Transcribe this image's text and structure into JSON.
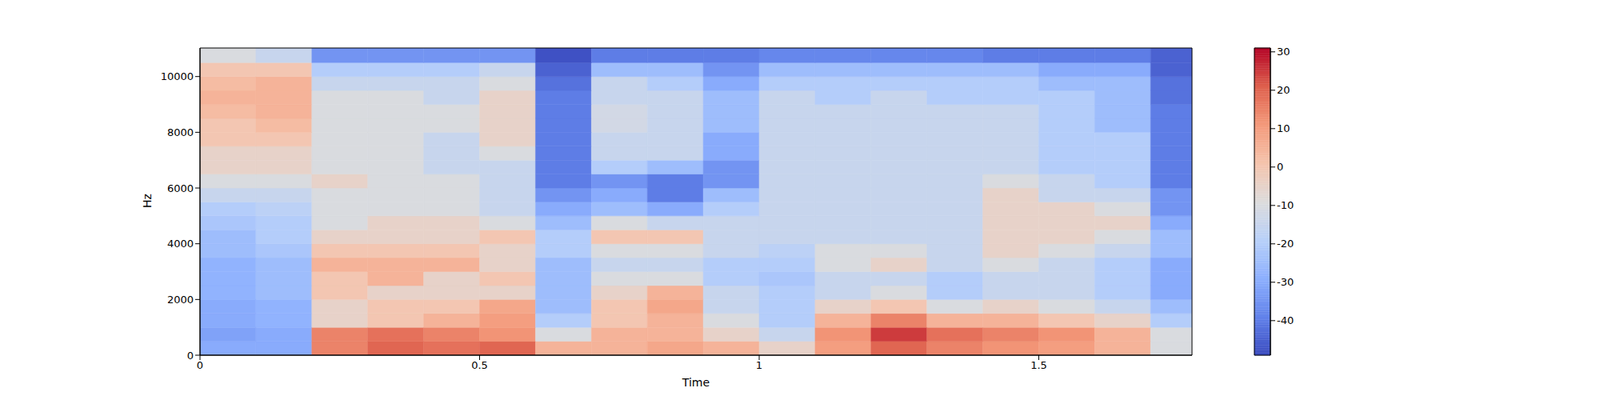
{
  "chart_data": {
    "type": "heatmap",
    "xlabel": "Time",
    "ylabel": "Hz",
    "xlim": [
      0,
      1.774
    ],
    "ylim": [
      0,
      11025
    ],
    "xticks": [
      0,
      0.5,
      1,
      1.5
    ],
    "yticks": [
      0,
      2000,
      4000,
      6000,
      8000,
      10000
    ],
    "x_edges": [
      0,
      0.1,
      0.2,
      0.3,
      0.4,
      0.5,
      0.6,
      0.7,
      0.8,
      0.9,
      1.0,
      1.1,
      1.2,
      1.3,
      1.4,
      1.5,
      1.6,
      1.7,
      1.774
    ],
    "y_edges": [
      0,
      500,
      1000,
      1500,
      2000,
      2500,
      3000,
      3500,
      4000,
      4500,
      5000,
      5500,
      6000,
      6500,
      7000,
      7500,
      8000,
      8500,
      9000,
      9500,
      10000,
      10500,
      11025
    ],
    "cells": [
      [
        -30,
        -30,
        15,
        20,
        18,
        20,
        5,
        5,
        8,
        5,
        -5,
        10,
        20,
        15,
        12,
        10,
        5,
        -10
      ],
      [
        -32,
        -30,
        15,
        18,
        15,
        12,
        -10,
        5,
        5,
        -5,
        -15,
        12,
        25,
        18,
        15,
        12,
        5,
        -10
      ],
      [
        -30,
        -28,
        -5,
        0,
        5,
        10,
        -20,
        0,
        5,
        -10,
        -20,
        5,
        15,
        5,
        5,
        0,
        -5,
        -20
      ],
      [
        -30,
        -28,
        -5,
        0,
        0,
        8,
        -25,
        0,
        8,
        -15,
        -20,
        -5,
        0,
        -10,
        -5,
        -10,
        -15,
        -25
      ],
      [
        -28,
        -25,
        0,
        -5,
        -5,
        -5,
        -25,
        -5,
        5,
        -15,
        -20,
        -15,
        -10,
        -20,
        -15,
        -15,
        -20,
        -30
      ],
      [
        -28,
        -25,
        0,
        5,
        -5,
        0,
        -25,
        -10,
        -10,
        -20,
        -22,
        -15,
        -15,
        -20,
        -15,
        -15,
        -20,
        -30
      ],
      [
        -28,
        -25,
        5,
        5,
        5,
        -5,
        -25,
        -15,
        -15,
        -20,
        -20,
        -10,
        -5,
        -15,
        -10,
        -15,
        -20,
        -30
      ],
      [
        -25,
        -22,
        0,
        0,
        0,
        -5,
        -20,
        -10,
        -10,
        -15,
        -18,
        -10,
        -10,
        -15,
        -5,
        -10,
        -15,
        -25
      ],
      [
        -25,
        -20,
        -5,
        -5,
        -5,
        0,
        -20,
        0,
        0,
        -15,
        -15,
        -15,
        -15,
        -15,
        -5,
        -5,
        -10,
        -25
      ],
      [
        -22,
        -20,
        -10,
        -5,
        -5,
        -10,
        -25,
        -10,
        -15,
        -15,
        -15,
        -15,
        -15,
        -15,
        -5,
        -5,
        -5,
        -30
      ],
      [
        -20,
        -18,
        -10,
        -10,
        -10,
        -15,
        -30,
        -25,
        -30,
        -20,
        -15,
        -15,
        -15,
        -15,
        -5,
        -5,
        -10,
        -35
      ],
      [
        -15,
        -15,
        -10,
        -10,
        -10,
        -15,
        -35,
        -30,
        -40,
        -25,
        -15,
        -15,
        -15,
        -15,
        -5,
        -15,
        -15,
        -35
      ],
      [
        -10,
        -10,
        -5,
        -10,
        -10,
        -15,
        -40,
        -35,
        -40,
        -35,
        -15,
        -15,
        -15,
        -15,
        -10,
        -15,
        -20,
        -40
      ],
      [
        -5,
        -5,
        -10,
        -10,
        -15,
        -15,
        -40,
        -20,
        -25,
        -35,
        -15,
        -15,
        -15,
        -15,
        -15,
        -20,
        -20,
        -40
      ],
      [
        -5,
        -5,
        -10,
        -10,
        -15,
        -10,
        -40,
        -15,
        -15,
        -30,
        -15,
        -15,
        -15,
        -15,
        -15,
        -20,
        -20,
        -40
      ],
      [
        0,
        0,
        -10,
        -10,
        -15,
        -5,
        -40,
        -15,
        -15,
        -30,
        -15,
        -15,
        -15,
        -15,
        -15,
        -20,
        -20,
        -40
      ],
      [
        0,
        3,
        -10,
        -10,
        -10,
        -5,
        -40,
        -12,
        -15,
        -25,
        -15,
        -15,
        -15,
        -15,
        -15,
        -20,
        -25,
        -40
      ],
      [
        3,
        5,
        -10,
        -10,
        -10,
        -5,
        -40,
        -12,
        -15,
        -25,
        -15,
        -15,
        -15,
        -15,
        -15,
        -20,
        -25,
        -40
      ],
      [
        5,
        5,
        -10,
        -10,
        -15,
        -5,
        -40,
        -15,
        -15,
        -25,
        -15,
        -20,
        -15,
        -20,
        -20,
        -20,
        -25,
        -42
      ],
      [
        3,
        5,
        -15,
        -15,
        -15,
        -10,
        -42,
        -15,
        -20,
        -30,
        -20,
        -20,
        -20,
        -20,
        -20,
        -25,
        -25,
        -42
      ],
      [
        0,
        0,
        -20,
        -20,
        -20,
        -15,
        -45,
        -25,
        -25,
        -35,
        -25,
        -25,
        -25,
        -25,
        -25,
        -30,
        -30,
        -45
      ],
      [
        -10,
        -15,
        -35,
        -35,
        -35,
        -35,
        -48,
        -40,
        -40,
        -40,
        -38,
        -38,
        -38,
        -38,
        -40,
        -40,
        -40,
        -45
      ]
    ],
    "colorbar": {
      "range": [
        -49,
        31
      ],
      "ticks": [
        30,
        20,
        10,
        0,
        -10,
        -20,
        -30,
        -40
      ]
    }
  }
}
